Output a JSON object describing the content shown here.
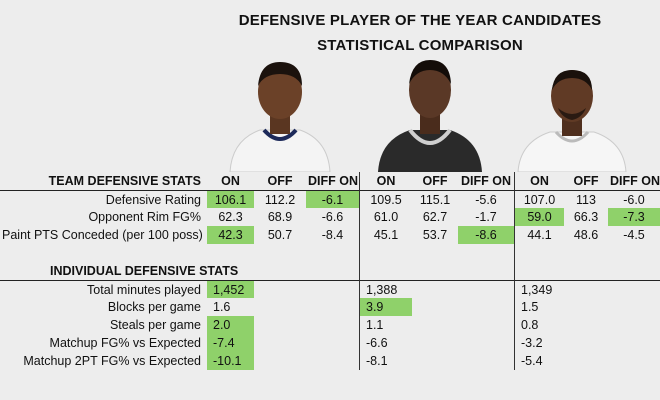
{
  "title_line1": "DEFENSIVE PLAYER OF THE YEAR CANDIDATES",
  "title_line2": "STATISTICAL COMPARISON",
  "team": {
    "header": "TEAM DEFENSIVE STATS",
    "columns": [
      "ON",
      "OFF",
      "DIFF ON",
      "ON",
      "OFF",
      "DIFF ON",
      "ON",
      "OFF",
      "DIFF ON"
    ],
    "rows": [
      {
        "label": "Defensive Rating",
        "values": [
          "106.1",
          "112.2",
          "-6.1",
          "109.5",
          "115.1",
          "-5.6",
          "107.0",
          "113",
          "-6.0"
        ],
        "highlight": [
          0,
          2
        ]
      },
      {
        "label": "Opponent Rim FG%",
        "values": [
          "62.3",
          "68.9",
          "-6.6",
          "61.0",
          "62.7",
          "-1.7",
          "59.0",
          "66.3",
          "-7.3"
        ],
        "highlight": [
          6,
          8
        ]
      },
      {
        "label": "Paint PTS Conceded (per 100 poss)",
        "values": [
          "42.3",
          "50.7",
          "-8.4",
          "45.1",
          "53.7",
          "-8.6",
          "44.1",
          "48.6",
          "-4.5"
        ],
        "highlight": [
          0,
          5
        ]
      }
    ]
  },
  "individual": {
    "header": "INDIVIDUAL DEFENSIVE STATS",
    "rows": [
      {
        "label": "Total minutes played",
        "values": [
          "1,452",
          "1,388",
          "1,349"
        ],
        "highlight": [
          0
        ]
      },
      {
        "label": "Blocks per game",
        "values": [
          "1.6",
          "3.9",
          "1.5"
        ],
        "highlight": [
          1
        ]
      },
      {
        "label": "Steals per game",
        "values": [
          "2.0",
          "1.1",
          "0.8"
        ],
        "highlight": [
          0
        ]
      },
      {
        "label": "Matchup FG% vs Expected",
        "values": [
          "-7.4",
          "-6.6",
          "-3.2"
        ],
        "highlight": [
          0
        ]
      },
      {
        "label": "Matchup 2PT FG% vs Expected",
        "values": [
          "-10.1",
          "-8.1",
          "-5.4"
        ],
        "highlight": [
          0
        ]
      }
    ]
  },
  "colors": {
    "highlight": "#8fd16a",
    "background": "#ededed"
  },
  "players": [
    {
      "jersey": "white",
      "icon": "player-photo"
    },
    {
      "jersey": "black",
      "icon": "player-photo"
    },
    {
      "jersey": "white",
      "icon": "player-photo"
    }
  ]
}
